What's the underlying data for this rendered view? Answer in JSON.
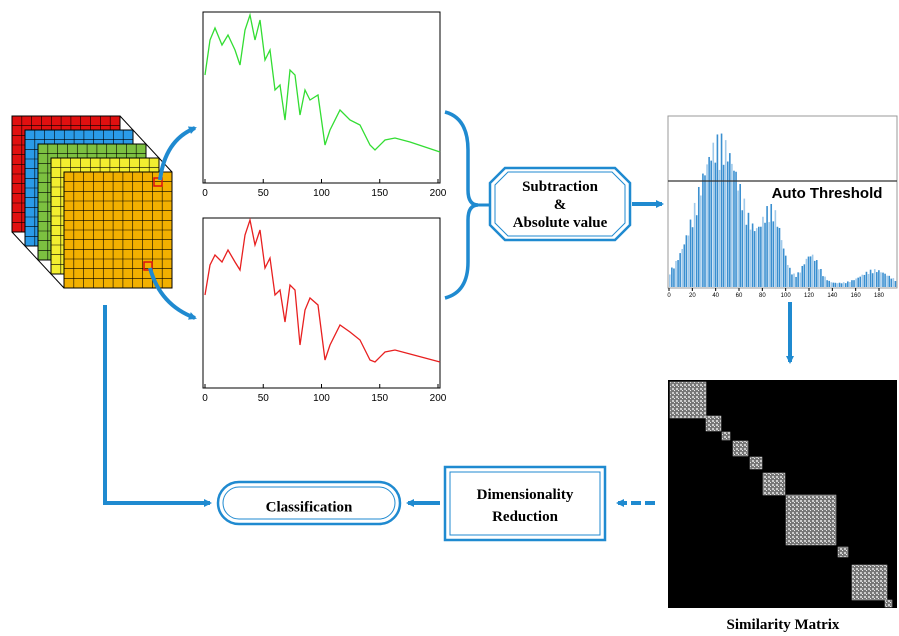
{
  "plots": [
    {
      "xticks": [
        0,
        50,
        100,
        150,
        200
      ]
    },
    {
      "xticks": [
        0,
        50,
        100,
        150,
        200
      ]
    }
  ],
  "process": {
    "line1": "Subtraction",
    "line2": "&",
    "line3": "Absolute value"
  },
  "histogram": {
    "label": "Auto Threshold",
    "xticks": [
      0,
      20,
      40,
      60,
      80,
      100,
      120,
      140,
      160,
      180
    ]
  },
  "matrix": {
    "label": "Similarity Matrix"
  },
  "reduction": {
    "line1": "Dimensionality",
    "line2": "Reduction"
  },
  "classification": "Classification"
}
